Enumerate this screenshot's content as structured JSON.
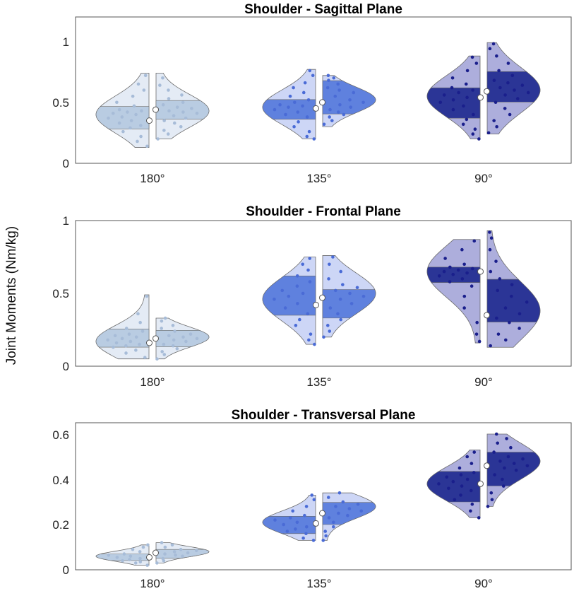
{
  "figure": {
    "ylabel": "Joint Moments (Nm/kg)"
  },
  "chart_data": [
    {
      "type": "violin",
      "title": "Shoulder - Sagittal Plane",
      "categories": [
        "180°",
        "135°",
        "90°"
      ],
      "ylim": [
        0,
        1.2
      ],
      "yticks": [
        0,
        0.5,
        1
      ],
      "ytick_labels": [
        "0",
        "0.5",
        "1"
      ],
      "groups": [
        {
          "category": "180°",
          "left": {
            "min": 0.13,
            "max": 0.74,
            "q1": 0.28,
            "q3": 0.47,
            "median": 0.35,
            "peak": 0.4,
            "pts": [
              0.14,
              0.18,
              0.22,
              0.26,
              0.29,
              0.31,
              0.33,
              0.35,
              0.37,
              0.38,
              0.4,
              0.41,
              0.42,
              0.43,
              0.44,
              0.47,
              0.5,
              0.55,
              0.6,
              0.65,
              0.72
            ]
          },
          "right": {
            "min": 0.2,
            "max": 0.74,
            "q1": 0.36,
            "q3": 0.52,
            "median": 0.44,
            "peak": 0.43,
            "pts": [
              0.2,
              0.24,
              0.27,
              0.3,
              0.33,
              0.35,
              0.37,
              0.39,
              0.41,
              0.42,
              0.43,
              0.45,
              0.46,
              0.48,
              0.5,
              0.53,
              0.56,
              0.6,
              0.64,
              0.7
            ]
          }
        },
        {
          "category": "135°",
          "left": {
            "min": 0.2,
            "max": 0.77,
            "q1": 0.36,
            "q3": 0.53,
            "median": 0.45,
            "peak": 0.46,
            "pts": [
              0.2,
              0.22,
              0.26,
              0.3,
              0.34,
              0.38,
              0.4,
              0.42,
              0.44,
              0.46,
              0.47,
              0.48,
              0.5,
              0.52,
              0.55,
              0.58,
              0.62,
              0.66,
              0.72,
              0.76
            ]
          },
          "right": {
            "min": 0.3,
            "max": 0.72,
            "q1": 0.4,
            "q3": 0.68,
            "median": 0.5,
            "peak": 0.52,
            "pts": [
              0.32,
              0.35,
              0.38,
              0.4,
              0.42,
              0.44,
              0.46,
              0.48,
              0.5,
              0.52,
              0.55,
              0.58,
              0.6,
              0.62,
              0.65,
              0.68,
              0.7,
              0.72
            ]
          }
        },
        {
          "category": "90°",
          "left": {
            "min": 0.2,
            "max": 0.88,
            "q1": 0.37,
            "q3": 0.63,
            "median": 0.54,
            "peak": 0.55,
            "pts": [
              0.2,
              0.24,
              0.28,
              0.32,
              0.36,
              0.4,
              0.44,
              0.47,
              0.5,
              0.52,
              0.54,
              0.56,
              0.58,
              0.6,
              0.62,
              0.65,
              0.7,
              0.76,
              0.82,
              0.87
            ]
          },
          "right": {
            "min": 0.24,
            "max": 0.99,
            "q1": 0.5,
            "q3": 0.76,
            "median": 0.59,
            "peak": 0.6,
            "pts": [
              0.25,
              0.3,
              0.35,
              0.4,
              0.45,
              0.5,
              0.53,
              0.56,
              0.58,
              0.6,
              0.62,
              0.64,
              0.66,
              0.68,
              0.72,
              0.76,
              0.82,
              0.88,
              0.94,
              0.98
            ]
          }
        }
      ]
    },
    {
      "type": "violin",
      "title": "Shoulder - Frontal Plane",
      "categories": [
        "180°",
        "135°",
        "90°"
      ],
      "ylim": [
        0,
        1
      ],
      "yticks": [
        0,
        0.5,
        1
      ],
      "ytick_labels": [
        "0",
        "0.5",
        "1"
      ],
      "groups": [
        {
          "category": "180°",
          "left": {
            "min": 0.05,
            "max": 0.49,
            "q1": 0.13,
            "q3": 0.26,
            "median": 0.16,
            "peak": 0.17,
            "pts": [
              0.06,
              0.09,
              0.11,
              0.13,
              0.14,
              0.15,
              0.16,
              0.17,
              0.18,
              0.19,
              0.2,
              0.21,
              0.22,
              0.24,
              0.26,
              0.3,
              0.36,
              0.48
            ]
          },
          "right": {
            "min": 0.05,
            "max": 0.33,
            "q1": 0.13,
            "q3": 0.25,
            "median": 0.19,
            "peak": 0.2,
            "pts": [
              0.05,
              0.08,
              0.1,
              0.12,
              0.14,
              0.15,
              0.17,
              0.18,
              0.19,
              0.2,
              0.21,
              0.22,
              0.24,
              0.26,
              0.28,
              0.31,
              0.33
            ]
          }
        },
        {
          "category": "135°",
          "left": {
            "min": 0.15,
            "max": 0.75,
            "q1": 0.35,
            "q3": 0.62,
            "median": 0.42,
            "peak": 0.46,
            "pts": [
              0.15,
              0.18,
              0.22,
              0.28,
              0.32,
              0.36,
              0.4,
              0.43,
              0.46,
              0.48,
              0.5,
              0.52,
              0.55,
              0.58,
              0.62,
              0.66,
              0.7,
              0.74
            ]
          },
          "right": {
            "min": 0.2,
            "max": 0.76,
            "q1": 0.33,
            "q3": 0.53,
            "median": 0.47,
            "peak": 0.5,
            "pts": [
              0.2,
              0.24,
              0.28,
              0.32,
              0.36,
              0.4,
              0.43,
              0.46,
              0.48,
              0.5,
              0.52,
              0.54,
              0.56,
              0.6,
              0.65,
              0.7,
              0.75
            ]
          }
        },
        {
          "category": "90°",
          "left": {
            "min": 0.16,
            "max": 0.87,
            "q1": 0.57,
            "q3": 0.69,
            "median": 0.65,
            "peak": 0.65,
            "pts": [
              0.17,
              0.22,
              0.3,
              0.4,
              0.48,
              0.55,
              0.58,
              0.6,
              0.62,
              0.63,
              0.64,
              0.65,
              0.66,
              0.67,
              0.68,
              0.7,
              0.74,
              0.8,
              0.86
            ]
          },
          "right": {
            "min": 0.13,
            "max": 0.93,
            "q1": 0.3,
            "q3": 0.6,
            "median": 0.35,
            "peak": 0.38,
            "pts": [
              0.14,
              0.18,
              0.22,
              0.26,
              0.3,
              0.33,
              0.36,
              0.4,
              0.44,
              0.48,
              0.52,
              0.56,
              0.6,
              0.65,
              0.72,
              0.8,
              0.88,
              0.92
            ]
          }
        }
      ]
    },
    {
      "type": "violin",
      "title": "Shoulder - Transversal Plane",
      "categories": [
        "180°",
        "135°",
        "90°"
      ],
      "ylim": [
        0,
        0.65
      ],
      "yticks": [
        0,
        0.2,
        0.4,
        0.6
      ],
      "ytick_labels": [
        "0",
        "0.2",
        "0.4",
        "0.6"
      ],
      "groups": [
        {
          "category": "180°",
          "left": {
            "min": 0.02,
            "max": 0.11,
            "q1": 0.04,
            "q3": 0.07,
            "median": 0.055,
            "peak": 0.06,
            "pts": [
              0.02,
              0.03,
              0.035,
              0.04,
              0.045,
              0.05,
              0.055,
              0.06,
              0.065,
              0.07,
              0.08,
              0.09,
              0.1,
              0.11
            ]
          },
          "right": {
            "min": 0.03,
            "max": 0.12,
            "q1": 0.05,
            "q3": 0.09,
            "median": 0.075,
            "peak": 0.08,
            "pts": [
              0.03,
              0.04,
              0.05,
              0.06,
              0.065,
              0.07,
              0.075,
              0.08,
              0.085,
              0.09,
              0.1,
              0.11,
              0.12
            ]
          }
        },
        {
          "category": "135°",
          "left": {
            "min": 0.13,
            "max": 0.33,
            "q1": 0.16,
            "q3": 0.24,
            "median": 0.205,
            "peak": 0.21,
            "pts": [
              0.13,
              0.14,
              0.16,
              0.17,
              0.18,
              0.19,
              0.2,
              0.21,
              0.22,
              0.23,
              0.24,
              0.26,
              0.28,
              0.31,
              0.33
            ]
          },
          "right": {
            "min": 0.13,
            "max": 0.34,
            "q1": 0.2,
            "q3": 0.3,
            "median": 0.25,
            "peak": 0.28,
            "pts": [
              0.13,
              0.15,
              0.17,
              0.19,
              0.21,
              0.23,
              0.24,
              0.25,
              0.26,
              0.27,
              0.28,
              0.29,
              0.3,
              0.32,
              0.34
            ]
          }
        },
        {
          "category": "90°",
          "left": {
            "min": 0.23,
            "max": 0.53,
            "q1": 0.3,
            "q3": 0.44,
            "median": 0.38,
            "peak": 0.38,
            "pts": [
              0.23,
              0.26,
              0.29,
              0.31,
              0.33,
              0.35,
              0.36,
              0.37,
              0.38,
              0.39,
              0.4,
              0.41,
              0.42,
              0.43,
              0.45,
              0.47,
              0.5,
              0.52
            ]
          },
          "right": {
            "min": 0.28,
            "max": 0.6,
            "q1": 0.37,
            "q3": 0.52,
            "median": 0.46,
            "peak": 0.48,
            "pts": [
              0.28,
              0.31,
              0.34,
              0.37,
              0.4,
              0.42,
              0.44,
              0.45,
              0.46,
              0.47,
              0.48,
              0.49,
              0.5,
              0.52,
              0.54,
              0.56,
              0.58,
              0.6
            ]
          }
        }
      ]
    }
  ],
  "colors": {
    "groups": [
      {
        "light": "#e4ebf5",
        "mid": "#b9cce2",
        "dots": "#a7bcd8"
      },
      {
        "light": "#cdd6f6",
        "mid": "#5f81de",
        "dots": "#4a6bd6"
      },
      {
        "light": "#adaedc",
        "mid": "#2b3596",
        "dots": "#1a1f8c"
      }
    ],
    "outline": "#6b6b6b",
    "axis": "#555555"
  }
}
